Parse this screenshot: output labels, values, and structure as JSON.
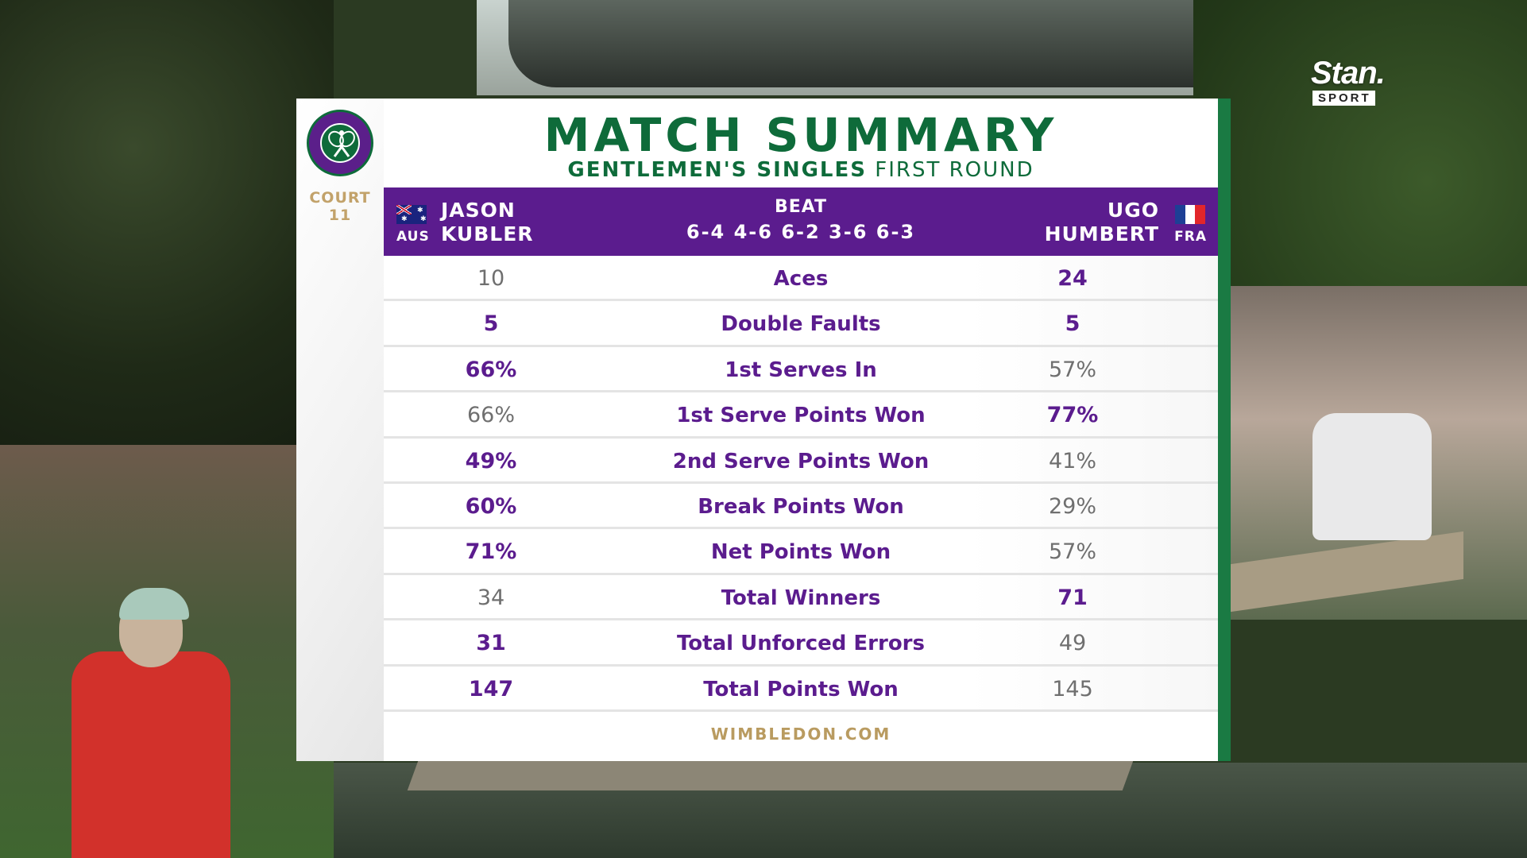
{
  "broadcaster": {
    "name": "Stan.",
    "sub": "SPORT"
  },
  "logo": {
    "name": "Wimbledon logo"
  },
  "court": {
    "label": "COURT",
    "number": "11"
  },
  "title": "MATCH SUMMARY",
  "subtitle": {
    "event": "GENTLEMEN'S SINGLES",
    "round": "FIRST ROUND"
  },
  "match": {
    "player_left": {
      "first": "JASON",
      "last": "KUBLER",
      "country": "AUS",
      "flag": "australia-flag"
    },
    "player_right": {
      "first": "UGO",
      "last": "HUMBERT",
      "country": "FRA",
      "flag": "france-flag"
    },
    "result_word": "BEAT",
    "score": "6-4 4-6 6-2 3-6 6-3"
  },
  "stats": [
    {
      "label": "Aces",
      "left": "10",
      "right": "24",
      "left_lead": false,
      "right_lead": true
    },
    {
      "label": "Double Faults",
      "left": "5",
      "right": "5",
      "left_lead": true,
      "right_lead": true
    },
    {
      "label": "1st Serves In",
      "left": "66%",
      "right": "57%",
      "left_lead": true,
      "right_lead": false
    },
    {
      "label": "1st Serve Points Won",
      "left": "66%",
      "right": "77%",
      "left_lead": false,
      "right_lead": true
    },
    {
      "label": "2nd Serve Points Won",
      "left": "49%",
      "right": "41%",
      "left_lead": true,
      "right_lead": false
    },
    {
      "label": "Break Points Won",
      "left": "60%",
      "right": "29%",
      "left_lead": true,
      "right_lead": false
    },
    {
      "label": "Net Points Won",
      "left": "71%",
      "right": "57%",
      "left_lead": true,
      "right_lead": false
    },
    {
      "label": "Total Winners",
      "left": "34",
      "right": "71",
      "left_lead": false,
      "right_lead": true
    },
    {
      "label": "Total Unforced Errors",
      "left": "31",
      "right": "49",
      "left_lead": true,
      "right_lead": false
    },
    {
      "label": "Total Points Won",
      "left": "147",
      "right": "145",
      "left_lead": true,
      "right_lead": false
    }
  ],
  "footer": "WIMBLEDON.COM",
  "colors": {
    "purple": "#5b1c8e",
    "green": "#0e6b3a",
    "gold": "#b99b60",
    "muted": "#6f6f6f"
  }
}
